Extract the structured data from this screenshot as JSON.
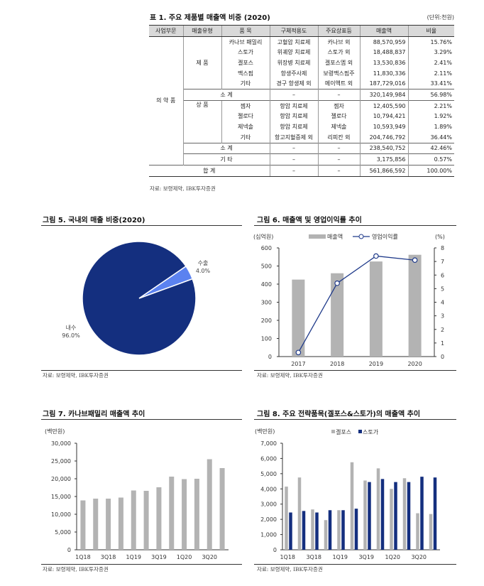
{
  "table": {
    "title": "표 1. 주요 제품별 매출액 비중 (2020)",
    "unit": "(단위:천원)",
    "headers": [
      "사업부문",
      "매출유형",
      "품 목",
      "구체적용도",
      "주요상표등",
      "매출액",
      "비율"
    ],
    "division": "의 약 품",
    "groups": [
      {
        "type": "제 품",
        "rows": [
          [
            "카나브 패밀리",
            "고혈압 치료제",
            "카나브 외",
            "88,570,959",
            "15.76%"
          ],
          [
            "스토가",
            "위궤양 치료제",
            "스토가 외",
            "18,488,837",
            "3.29%"
          ],
          [
            "겔포스",
            "위장병 치료제",
            "겔포스엠 외",
            "13,530,836",
            "2.41%"
          ],
          [
            "맥스핌",
            "항생주사제",
            "보령맥스핌주",
            "11,830,336",
            "2.11%"
          ],
          [
            "기타",
            "경구 항생제 외",
            "메이액트 외",
            "187,729,016",
            "33.41%"
          ]
        ],
        "subtotal": [
          "소 계",
          "–",
          "–",
          "320,149,984",
          "56.98%"
        ]
      },
      {
        "type": "상 품",
        "rows": [
          [
            "젬자",
            "항암 치료제",
            "젬자",
            "12,405,590",
            "2.21%"
          ],
          [
            "젤로다",
            "항암 치료제",
            "젤로다",
            "10,794,421",
            "1.92%"
          ],
          [
            "제넥솔",
            "항암 치료제",
            "제넥솔",
            "10,593,949",
            "1.89%"
          ],
          [
            "기타",
            "항고지혈증제 외",
            "리피칸 외",
            "204,746,792",
            "36.44%"
          ]
        ],
        "subtotal": [
          "소 계",
          "–",
          "–",
          "238,540,752",
          "42.46%"
        ]
      }
    ],
    "other": [
      "기 타",
      "–",
      "–",
      "3,175,856",
      "0.57%"
    ],
    "total": [
      "합 계",
      "–",
      "–",
      "561,866,592",
      "100.00%"
    ],
    "source": "자료: 보령제약, IBK투자증권"
  },
  "fig5": {
    "title": "그림 5. 국내외 매출 비중(2020)",
    "source": "자료: 보령제약, IBK투자증권"
  },
  "fig6": {
    "title": "그림 6. 매출액 및 영업이익률 추이",
    "unit_left": "(십억원)",
    "unit_right": "(%)",
    "source": "자료: 보령제약, IBK투자증권"
  },
  "fig7": {
    "title": "그림 7. 카나브패밀리 매출액 추이",
    "unit": "(백만원)",
    "source": "자료: 보령제약, IBK투자증권"
  },
  "fig8": {
    "title": "그림 8. 주요 전략품목(겔포스&스토가)의 매출액 추이",
    "unit": "(백만원)",
    "source": "자료: 보령제약, IBK투자증권"
  },
  "chart_data": [
    {
      "type": "pie",
      "title": "그림 5. 국내외 매출 비중(2020)",
      "slices": [
        {
          "label": "수출",
          "value": 4.0,
          "display": "4.0%",
          "color": "#5b82f0"
        },
        {
          "label": "내수",
          "value": 96.0,
          "display": "96.0%",
          "color": "#142f7f"
        }
      ]
    },
    {
      "type": "bar+line",
      "title": "그림 6. 매출액 및 영업이익률 추이",
      "categories": [
        "2017",
        "2018",
        "2019",
        "2020"
      ],
      "series": [
        {
          "name": "매출액",
          "axis": "left",
          "values": [
            425,
            460,
            525,
            562
          ],
          "color": "#b3b3b3"
        },
        {
          "name": "영업이익률",
          "axis": "right",
          "values": [
            0.3,
            5.4,
            7.4,
            7.1
          ],
          "color": "#1f3a8a"
        }
      ],
      "ylim": [
        0,
        600
      ],
      "yticks": [
        "0",
        "100",
        "200",
        "300",
        "400",
        "500",
        "600"
      ],
      "y2lim": [
        0,
        8
      ],
      "y2ticks": [
        "0",
        "1",
        "2",
        "3",
        "4",
        "5",
        "6",
        "7",
        "8"
      ],
      "legend": "top"
    },
    {
      "type": "bar",
      "title": "그림 7. 카나브패밀리 매출액 추이",
      "categories": [
        "1Q18",
        "2Q18",
        "3Q18",
        "4Q18",
        "1Q19",
        "2Q19",
        "3Q19",
        "4Q19",
        "1Q20",
        "2Q20",
        "3Q20",
        "4Q20"
      ],
      "xticklabels": [
        "1Q18",
        "3Q18",
        "1Q19",
        "3Q19",
        "1Q20",
        "3Q20"
      ],
      "values": [
        13900,
        14400,
        14400,
        14700,
        16700,
        16600,
        17600,
        20600,
        19900,
        20000,
        25500,
        23000
      ],
      "ylim": [
        0,
        30000
      ],
      "yticks": [
        "0",
        "5,000",
        "10,000",
        "15,000",
        "20,000",
        "25,000",
        "30,000"
      ],
      "color": "#b3b3b3"
    },
    {
      "type": "bar",
      "title": "그림 8. 주요 전략품목(겔포스&스토가)의 매출액 추이",
      "categories": [
        "1Q18",
        "2Q18",
        "3Q18",
        "4Q18",
        "1Q19",
        "2Q19",
        "3Q19",
        "4Q19",
        "1Q20",
        "2Q20",
        "3Q20",
        "4Q20"
      ],
      "xticklabels": [
        "1Q18",
        "3Q18",
        "1Q19",
        "3Q19",
        "1Q20",
        "3Q20"
      ],
      "series": [
        {
          "name": "겔포스",
          "values": [
            4150,
            4750,
            2650,
            1950,
            2600,
            5750,
            4550,
            5350,
            4000,
            4700,
            2400,
            2350
          ],
          "color": "#b3b3b3"
        },
        {
          "name": "스토가",
          "values": [
            2450,
            2550,
            2450,
            2600,
            2600,
            2700,
            4450,
            4650,
            4450,
            4450,
            4800,
            4750
          ],
          "color": "#142f7f"
        }
      ],
      "ylim": [
        0,
        7000
      ],
      "yticks": [
        "0",
        "1,000",
        "2,000",
        "3,000",
        "4,000",
        "5,000",
        "6,000",
        "7,000"
      ],
      "legend": "top"
    }
  ]
}
